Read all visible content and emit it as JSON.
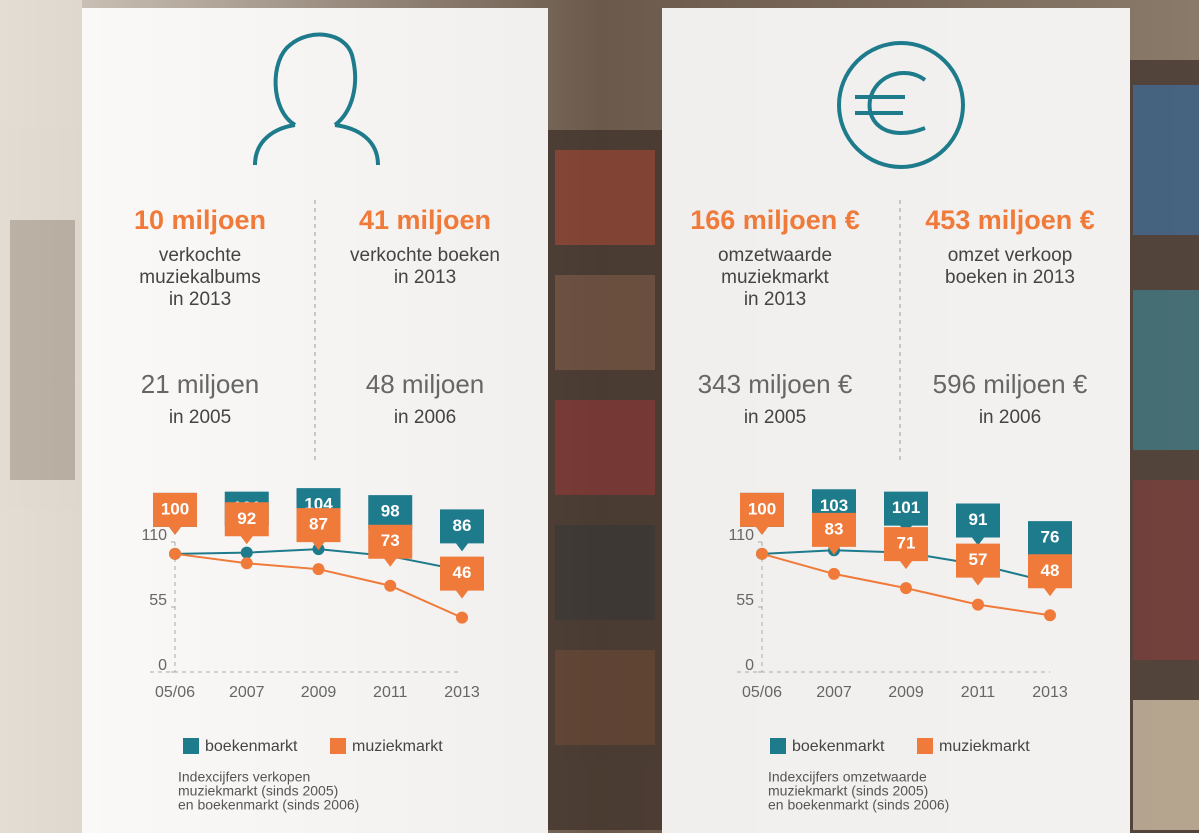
{
  "panels": [
    {
      "stats": [
        {
          "value": "10 miljoen",
          "lines": [
            "verkochte",
            "muziekalbums",
            "in 2013"
          ],
          "old_value": "21 miljoen",
          "old_lines": [
            "in 2005"
          ]
        },
        {
          "value": "41 miljoen",
          "lines": [
            "verkochte boeken",
            "in 2013"
          ],
          "old_value": "48 miljoen",
          "old_lines": [
            "in 2006"
          ]
        }
      ],
      "note": [
        "Indexcijfers verkopen",
        "muziekmarkt (sinds 2005)",
        "en boekenmarkt (sinds 2006)"
      ]
    },
    {
      "stats": [
        {
          "value": "166 miljoen €",
          "lines": [
            "omzetwaarde",
            "muziekmarkt",
            "in 2013"
          ],
          "old_value": "343 miljoen €",
          "old_lines": [
            "in 2005"
          ]
        },
        {
          "value": "453 miljoen €",
          "lines": [
            "omzet verkoop",
            "boeken in 2013"
          ],
          "old_value": "596 miljoen €",
          "old_lines": [
            "in 2006"
          ]
        }
      ],
      "note": [
        "Indexcijfers omzetwaarde",
        "muziekmarkt (sinds 2005)",
        "en boekenmarkt (sinds 2006)"
      ]
    }
  ],
  "chart_data": [
    {
      "type": "line",
      "categories": [
        "05/06",
        "2007",
        "2009",
        "2011",
        "2013"
      ],
      "series": [
        {
          "name": "boekenmarkt",
          "color": "#1e7b8c",
          "values": [
            100,
            101,
            104,
            98,
            86
          ]
        },
        {
          "name": "muziekmarkt",
          "color": "#f07a3a",
          "values": [
            100,
            92,
            87,
            73,
            46
          ]
        }
      ],
      "ylim": [
        0,
        110
      ],
      "yticks": [
        0,
        55,
        110
      ],
      "grid": false
    },
    {
      "type": "line",
      "categories": [
        "05/06",
        "2007",
        "2009",
        "2011",
        "2013"
      ],
      "series": [
        {
          "name": "boekenmarkt",
          "color": "#1e7b8c",
          "values": [
            100,
            103,
            101,
            91,
            76
          ]
        },
        {
          "name": "muziekmarkt",
          "color": "#f07a3a",
          "values": [
            100,
            83,
            71,
            57,
            48
          ]
        }
      ],
      "ylim": [
        0,
        110
      ],
      "yticks": [
        0,
        55,
        110
      ],
      "grid": false
    }
  ]
}
